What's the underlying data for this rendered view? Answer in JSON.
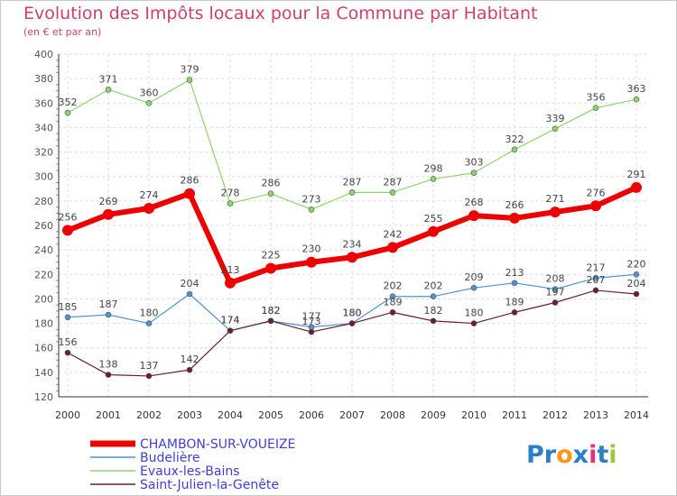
{
  "title": "Evolution des Impôts locaux pour la Commune par Habitant",
  "subtitle": "(en € et par an)",
  "logo": {
    "parts": [
      "Pr",
      "o",
      "x",
      "i",
      "t",
      "i"
    ],
    "colors": [
      "#2a7fc9",
      "#f29a1d",
      "#2a7fc9",
      "#e8317a",
      "#2a7fc9",
      "#9ac93b"
    ]
  },
  "chart_data": {
    "type": "line",
    "title": "Evolution des Impôts locaux pour la Commune par Habitant",
    "subtitle": "(en € et par an)",
    "xlabel": "",
    "ylabel": "",
    "categories": [
      "2000",
      "2001",
      "2002",
      "2003",
      "2004",
      "2005",
      "2006",
      "2007",
      "2008",
      "2009",
      "2010",
      "2011",
      "2012",
      "2013",
      "2014"
    ],
    "yticks": [
      "120",
      "140",
      "160",
      "180",
      "200",
      "220",
      "240",
      "260",
      "280",
      "300",
      "320",
      "340",
      "360",
      "380",
      "400"
    ],
    "ylim": [
      120,
      400
    ],
    "grid": true,
    "legend_position": "bottom-left",
    "series": [
      {
        "name": "CHAMBON-SUR-VOUEIZE",
        "color": "#ee0000",
        "values": [
          256,
          269,
          274,
          286,
          213,
          225,
          230,
          234,
          242,
          255,
          268,
          266,
          271,
          276,
          291
        ],
        "width": "thick"
      },
      {
        "name": "Budelière",
        "color": "#4f94cd",
        "values": [
          185,
          187,
          180,
          204,
          174,
          182,
          177,
          180,
          202,
          202,
          209,
          213,
          208,
          217,
          220
        ],
        "width": "thin"
      },
      {
        "name": "Evaux-les-Bains",
        "color": "#8fd36b",
        "values": [
          352,
          371,
          360,
          379,
          278,
          286,
          273,
          287,
          287,
          298,
          303,
          322,
          339,
          356,
          363
        ],
        "width": "thin"
      },
      {
        "name": "Saint-Julien-la-Genête",
        "color": "#6b1f2a",
        "values": [
          156,
          138,
          137,
          142,
          174,
          182,
          173,
          180,
          189,
          182,
          180,
          189,
          197,
          207,
          204
        ],
        "width": "thin"
      }
    ]
  }
}
